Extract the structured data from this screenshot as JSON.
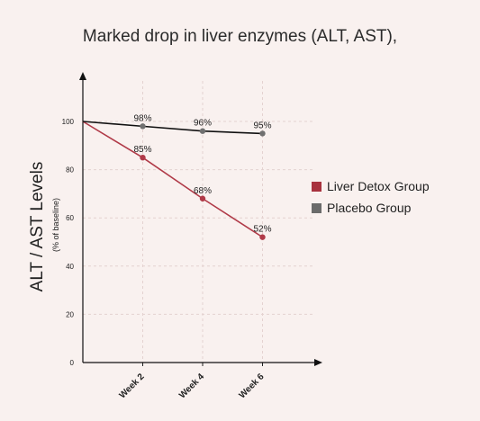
{
  "chart_data": {
    "type": "line",
    "title": "Marked drop in liver enzymes (ALT, AST),",
    "ylabel": "ALT / AST Levels",
    "ylabel_sub": "(% of baseline)",
    "xlabel": "",
    "categories": [
      "",
      "Week 2",
      "Week 4",
      "Week 6"
    ],
    "x_tick_labels": [
      "Week 2",
      "Week 4",
      "Week 6"
    ],
    "y_ticks": [
      0,
      20,
      40,
      60,
      80,
      100
    ],
    "ylim": [
      0,
      100
    ],
    "grid": true,
    "legend_position": "right",
    "series": [
      {
        "name": "Liver Detox Group",
        "values": [
          100,
          85,
          68,
          52
        ],
        "labels": [
          "",
          "85%",
          "68%",
          "52%"
        ],
        "color": "#b03a48",
        "legend_color": "#a8323e"
      },
      {
        "name": "Placebo Group",
        "values": [
          100,
          98,
          96,
          95
        ],
        "labels": [
          "",
          "98%",
          "96%",
          "95%"
        ],
        "color": "#111111",
        "legend_color": "#6b6b6b"
      }
    ]
  }
}
